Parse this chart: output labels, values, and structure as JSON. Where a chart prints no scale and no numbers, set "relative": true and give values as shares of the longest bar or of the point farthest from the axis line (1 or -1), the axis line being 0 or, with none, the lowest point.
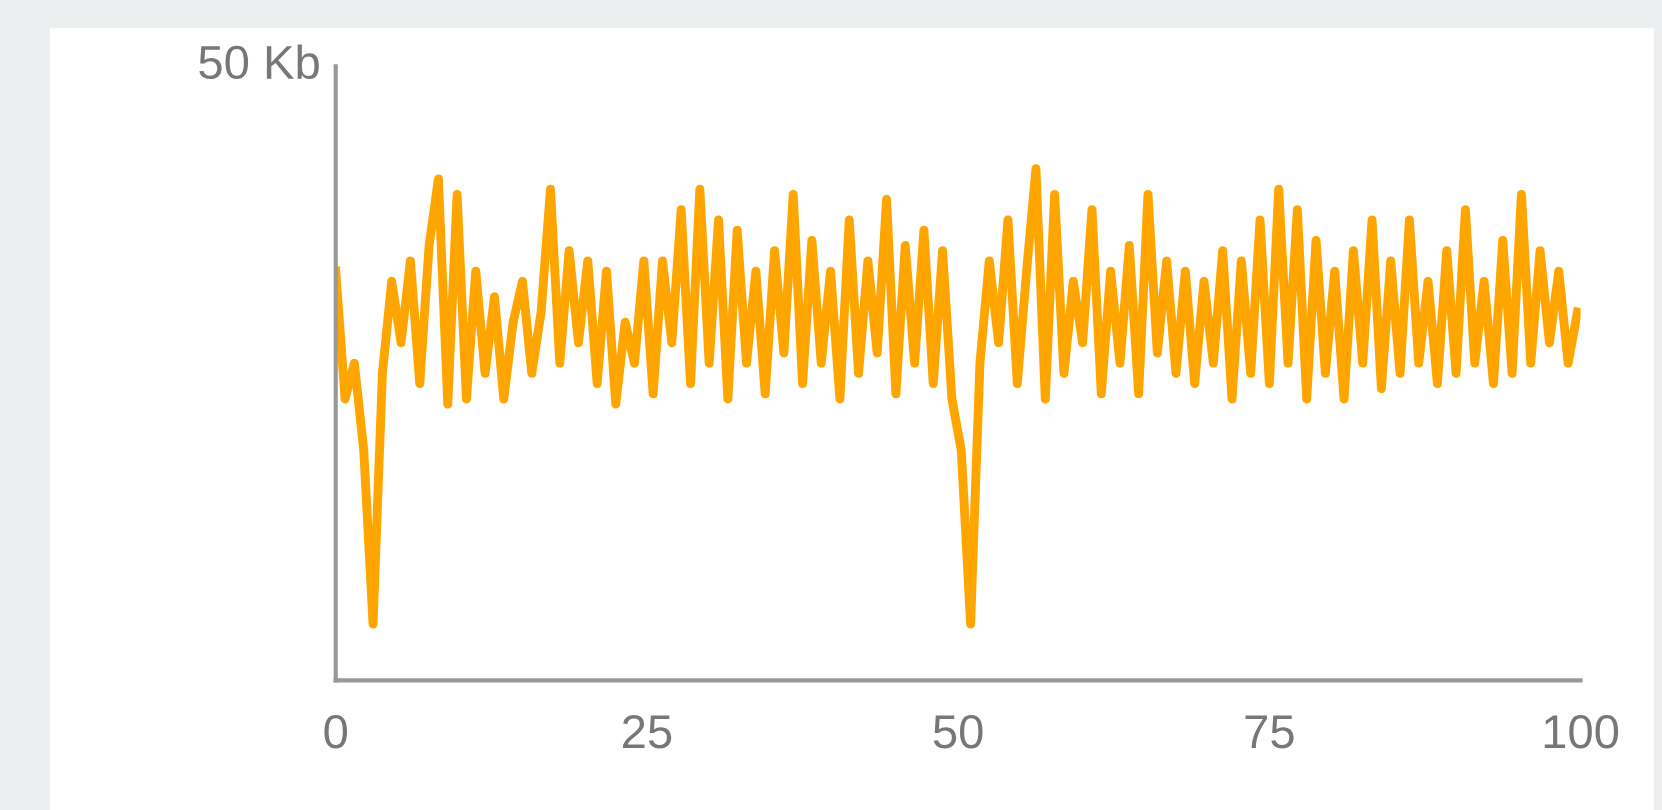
{
  "chart_data": {
    "type": "line",
    "relative": true,
    "ylabel": "50 Kb",
    "x": [
      0,
      0.75,
      1.5,
      2.25,
      3,
      3.75,
      4.5,
      5.25,
      6,
      6.75,
      7.5,
      8.25,
      9,
      9.75,
      10.5,
      11.25,
      12,
      12.75,
      13.5,
      14.25,
      15,
      15.75,
      16.5,
      17.25,
      18,
      18.75,
      19.5,
      20.25,
      21,
      21.75,
      22.5,
      23.25,
      24,
      24.75,
      25.5,
      26.25,
      27,
      27.75,
      28.5,
      29.25,
      30,
      30.75,
      31.5,
      32.25,
      33,
      33.75,
      34.5,
      35.25,
      36,
      36.75,
      37.5,
      38.25,
      39,
      39.75,
      40.5,
      41.25,
      42,
      42.75,
      43.5,
      44.25,
      45,
      45.75,
      46.5,
      47.25,
      48,
      48.75,
      49.5,
      50.25,
      51,
      51.75,
      52.5,
      53.25,
      54,
      54.75,
      55.5,
      56.25,
      57,
      57.75,
      58.5,
      59.25,
      60,
      60.75,
      61.5,
      62.25,
      63,
      63.75,
      64.5,
      65.25,
      66,
      66.75,
      67.5,
      68.25,
      69,
      69.75,
      70.5,
      71.25,
      72,
      72.75,
      73.5,
      74.25,
      75,
      75.75,
      76.5,
      77.25,
      78,
      78.75,
      79.5,
      80.25,
      81,
      81.75,
      82.5,
      83.25,
      84,
      84.75,
      85.5,
      86.25,
      87,
      87.75,
      88.5,
      89.25,
      90,
      90.75,
      91.5,
      92.25,
      93,
      93.75,
      94.5,
      95.25,
      96,
      96.75,
      97.5,
      98.25,
      99,
      99.75
    ],
    "series": [
      {
        "color": "#ffa500",
        "values": [
          0.8,
          0.55,
          0.62,
          0.45,
          0.11,
          0.6,
          0.78,
          0.66,
          0.82,
          0.58,
          0.85,
          0.98,
          0.54,
          0.95,
          0.55,
          0.8,
          0.6,
          0.75,
          0.55,
          0.7,
          0.78,
          0.6,
          0.72,
          0.96,
          0.62,
          0.84,
          0.66,
          0.82,
          0.58,
          0.8,
          0.54,
          0.7,
          0.62,
          0.82,
          0.56,
          0.82,
          0.66,
          0.92,
          0.58,
          0.96,
          0.62,
          0.9,
          0.55,
          0.88,
          0.62,
          0.8,
          0.56,
          0.84,
          0.64,
          0.95,
          0.58,
          0.86,
          0.62,
          0.8,
          0.55,
          0.9,
          0.6,
          0.82,
          0.64,
          0.94,
          0.56,
          0.85,
          0.62,
          0.88,
          0.58,
          0.84,
          0.55,
          0.45,
          0.11,
          0.62,
          0.82,
          0.66,
          0.9,
          0.58,
          0.8,
          1,
          0.55,
          0.95,
          0.6,
          0.78,
          0.66,
          0.92,
          0.56,
          0.8,
          0.62,
          0.85,
          0.56,
          0.95,
          0.64,
          0.82,
          0.6,
          0.8,
          0.58,
          0.78,
          0.62,
          0.84,
          0.55,
          0.82,
          0.6,
          0.9,
          0.58,
          0.96,
          0.62,
          0.92,
          0.55,
          0.86,
          0.6,
          0.8,
          0.55,
          0.84,
          0.62,
          0.9,
          0.57,
          0.82,
          0.6,
          0.9,
          0.62,
          0.78,
          0.58,
          0.84,
          0.6,
          0.92,
          0.62,
          0.78,
          0.58,
          0.86,
          0.6,
          0.95,
          0.62,
          0.84,
          0.66,
          0.8,
          0.62,
          0.72
        ]
      }
    ],
    "xlim": [
      0,
      100
    ],
    "xticks": [
      0,
      25,
      50,
      75,
      100
    ],
    "grid": false,
    "legend": false
  }
}
